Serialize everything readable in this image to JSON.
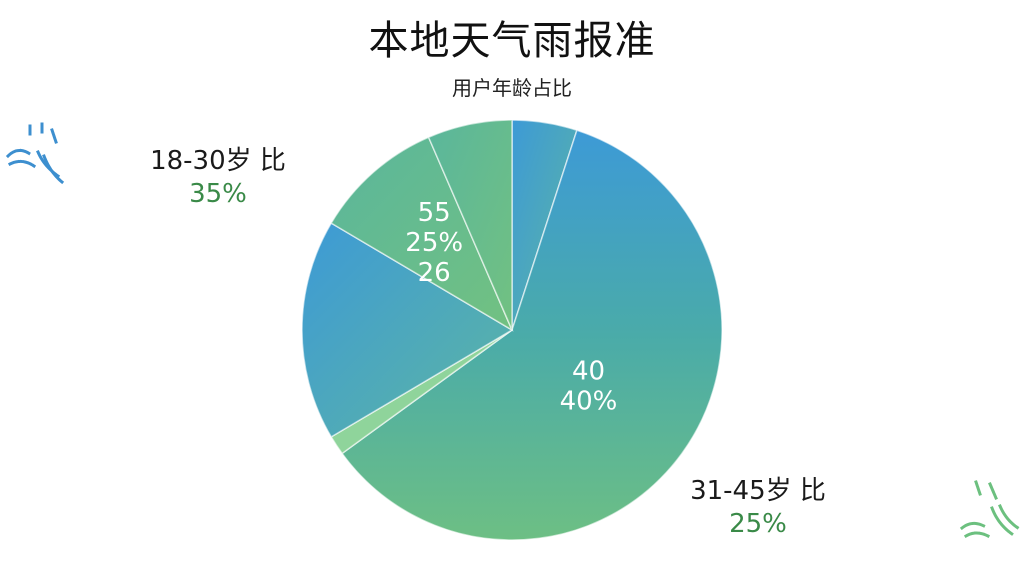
{
  "title": "本地天气雨报准",
  "subtitle": "用户年龄占比",
  "callouts": {
    "left": {
      "name": "18-30岁 比",
      "percent": "35%"
    },
    "right": {
      "name": "31-45岁 比",
      "percent": "25%"
    }
  },
  "icons": [
    "rain-umbrella-icon",
    "rain-umbrella-icon"
  ],
  "colors": {
    "blue": "#3d9ad6",
    "teal": "#45a8b8",
    "green": "#6dbf84",
    "light_green": "#8fd49b",
    "callout_pct": "#3a8a48"
  },
  "chart_data": {
    "type": "pie",
    "title": "本地天气雨报准",
    "subtitle": "用户年龄占比",
    "slices": [
      {
        "value": 5,
        "labels": []
      },
      {
        "value": 60,
        "labels": [
          "40",
          "40%"
        ]
      },
      {
        "value": 1.5,
        "labels": []
      },
      {
        "value": 17,
        "labels": []
      },
      {
        "value": 10,
        "labels": [
          "55",
          "25%",
          "26"
        ]
      },
      {
        "value": 6.5,
        "labels": []
      }
    ]
  }
}
